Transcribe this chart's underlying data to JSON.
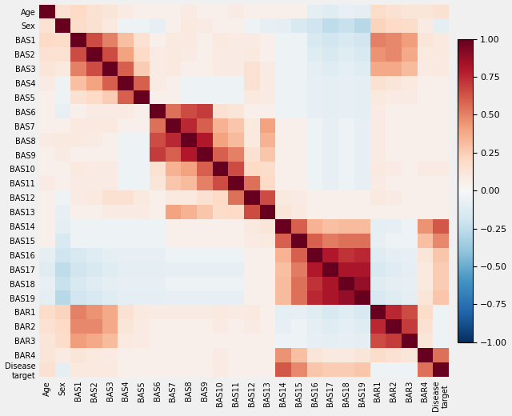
{
  "labels": [
    "Age",
    "Sex",
    "BAS1",
    "BAS2",
    "BAS3",
    "BAS4",
    "BAS5",
    "BAS6",
    "BAS7",
    "BAS8",
    "BAS9",
    "BAS10",
    "BAS11",
    "BAS12",
    "BAS13",
    "BAS14",
    "BAS15",
    "BAS16",
    "BAS17",
    "BAS18",
    "BAS19",
    "BAR1",
    "BAR2",
    "BAR3",
    "BAR4",
    "Disease\ntarget"
  ],
  "corr_matrix": [
    [
      1.0,
      0.15,
      0.2,
      0.15,
      0.12,
      0.08,
      0.05,
      0.05,
      0.05,
      0.08,
      0.05,
      0.05,
      0.08,
      0.05,
      0.05,
      0.05,
      0.05,
      -0.1,
      -0.12,
      -0.08,
      -0.1,
      0.18,
      0.15,
      0.12,
      0.12,
      0.15
    ],
    [
      0.15,
      1.0,
      0.18,
      0.15,
      0.1,
      -0.05,
      -0.05,
      -0.08,
      0.05,
      0.1,
      0.08,
      0.05,
      0.05,
      -0.05,
      -0.08,
      -0.1,
      -0.15,
      -0.2,
      -0.25,
      -0.22,
      -0.28,
      0.22,
      0.2,
      0.18,
      0.08,
      -0.1
    ],
    [
      0.2,
      0.18,
      1.0,
      0.65,
      0.5,
      0.3,
      0.15,
      0.05,
      0.1,
      0.1,
      0.05,
      0.1,
      0.08,
      0.08,
      0.05,
      -0.05,
      -0.05,
      -0.15,
      -0.18,
      -0.15,
      -0.18,
      0.5,
      0.48,
      0.42,
      0.12,
      0.1
    ],
    [
      0.15,
      0.15,
      0.65,
      1.0,
      0.65,
      0.4,
      0.2,
      0.08,
      0.1,
      0.08,
      0.05,
      0.08,
      0.08,
      0.1,
      0.05,
      -0.05,
      -0.05,
      -0.12,
      -0.15,
      -0.12,
      -0.15,
      0.45,
      0.48,
      0.38,
      0.1,
      0.1
    ],
    [
      0.12,
      0.1,
      0.5,
      0.65,
      1.0,
      0.6,
      0.25,
      0.08,
      0.1,
      0.05,
      0.05,
      0.08,
      0.08,
      0.15,
      0.08,
      -0.05,
      -0.05,
      -0.1,
      -0.12,
      -0.1,
      -0.12,
      0.38,
      0.38,
      0.32,
      0.08,
      0.1
    ],
    [
      0.08,
      -0.05,
      0.3,
      0.4,
      0.6,
      1.0,
      0.6,
      0.08,
      0.05,
      -0.05,
      -0.05,
      -0.05,
      -0.05,
      0.15,
      0.08,
      -0.05,
      -0.05,
      -0.08,
      -0.1,
      -0.08,
      -0.1,
      0.15,
      0.12,
      0.1,
      0.05,
      0.05
    ],
    [
      0.05,
      -0.05,
      0.15,
      0.2,
      0.25,
      0.6,
      1.0,
      0.05,
      0.05,
      -0.05,
      -0.05,
      -0.05,
      -0.05,
      0.1,
      0.08,
      -0.05,
      -0.05,
      -0.08,
      -0.1,
      -0.08,
      -0.1,
      0.1,
      0.08,
      0.08,
      0.05,
      0.05
    ],
    [
      0.05,
      -0.08,
      0.05,
      0.08,
      0.08,
      0.08,
      0.05,
      1.0,
      0.55,
      0.65,
      0.7,
      0.15,
      0.12,
      0.05,
      0.05,
      -0.05,
      -0.05,
      -0.08,
      -0.1,
      -0.08,
      -0.1,
      0.08,
      0.05,
      0.05,
      0.05,
      0.05
    ],
    [
      0.05,
      0.05,
      0.1,
      0.1,
      0.1,
      0.05,
      0.05,
      0.55,
      1.0,
      0.75,
      0.6,
      0.35,
      0.28,
      0.1,
      0.4,
      0.05,
      0.05,
      -0.05,
      -0.08,
      -0.05,
      -0.08,
      0.08,
      0.05,
      0.05,
      0.05,
      0.05
    ],
    [
      0.08,
      0.1,
      0.1,
      0.08,
      0.05,
      -0.05,
      -0.05,
      0.65,
      0.75,
      1.0,
      0.8,
      0.4,
      0.32,
      0.1,
      0.35,
      0.05,
      0.05,
      -0.05,
      -0.08,
      -0.05,
      -0.08,
      0.08,
      0.05,
      0.05,
      0.05,
      0.05
    ],
    [
      0.05,
      0.08,
      0.05,
      0.05,
      0.05,
      -0.05,
      -0.05,
      0.7,
      0.6,
      0.8,
      1.0,
      0.6,
      0.5,
      0.15,
      0.28,
      0.05,
      0.05,
      -0.05,
      -0.08,
      -0.05,
      -0.08,
      0.08,
      0.05,
      0.05,
      0.05,
      0.05
    ],
    [
      0.05,
      0.05,
      0.1,
      0.08,
      0.08,
      -0.05,
      -0.05,
      0.15,
      0.35,
      0.4,
      0.6,
      1.0,
      0.65,
      0.2,
      0.18,
      0.05,
      0.05,
      -0.05,
      -0.08,
      -0.05,
      -0.08,
      0.1,
      0.08,
      0.05,
      0.08,
      0.08
    ],
    [
      0.08,
      0.05,
      0.08,
      0.08,
      0.08,
      -0.05,
      -0.05,
      0.12,
      0.28,
      0.32,
      0.5,
      0.65,
      1.0,
      0.55,
      0.2,
      0.05,
      0.05,
      -0.05,
      -0.08,
      -0.05,
      -0.08,
      0.08,
      0.05,
      0.05,
      0.05,
      0.05
    ],
    [
      0.05,
      -0.05,
      0.08,
      0.1,
      0.15,
      0.15,
      0.1,
      0.05,
      0.1,
      0.1,
      0.15,
      0.2,
      0.55,
      1.0,
      0.65,
      0.1,
      0.08,
      0.05,
      0.05,
      0.05,
      0.05,
      0.1,
      0.08,
      0.05,
      0.05,
      0.05
    ],
    [
      0.05,
      -0.08,
      0.05,
      0.05,
      0.08,
      0.08,
      0.08,
      0.05,
      0.4,
      0.35,
      0.28,
      0.18,
      0.2,
      0.65,
      1.0,
      0.12,
      0.1,
      0.05,
      0.05,
      0.05,
      0.05,
      0.05,
      0.05,
      0.05,
      0.05,
      0.05
    ],
    [
      0.05,
      -0.1,
      -0.05,
      -0.05,
      -0.05,
      -0.05,
      -0.05,
      -0.05,
      0.05,
      0.05,
      0.05,
      0.05,
      0.05,
      0.1,
      0.12,
      1.0,
      0.6,
      0.35,
      0.3,
      0.32,
      0.32,
      -0.1,
      -0.08,
      -0.05,
      0.45,
      0.62
    ],
    [
      0.05,
      -0.15,
      -0.05,
      -0.05,
      -0.05,
      -0.05,
      -0.05,
      -0.05,
      0.05,
      0.05,
      0.05,
      0.05,
      0.05,
      0.08,
      0.1,
      0.6,
      1.0,
      0.6,
      0.52,
      0.55,
      0.55,
      -0.08,
      -0.05,
      -0.05,
      0.3,
      0.48
    ],
    [
      -0.1,
      -0.2,
      -0.15,
      -0.12,
      -0.1,
      -0.08,
      -0.08,
      -0.08,
      -0.05,
      -0.05,
      -0.05,
      -0.05,
      -0.05,
      0.05,
      0.05,
      0.35,
      0.6,
      1.0,
      0.8,
      0.72,
      0.75,
      -0.12,
      -0.1,
      -0.08,
      0.12,
      0.28
    ],
    [
      -0.12,
      -0.25,
      -0.18,
      -0.15,
      -0.12,
      -0.1,
      -0.1,
      -0.1,
      -0.08,
      -0.08,
      -0.08,
      -0.08,
      -0.08,
      0.05,
      0.05,
      0.3,
      0.52,
      0.8,
      1.0,
      0.82,
      0.82,
      -0.15,
      -0.12,
      -0.1,
      0.1,
      0.25
    ],
    [
      -0.08,
      -0.22,
      -0.15,
      -0.12,
      -0.1,
      -0.08,
      -0.08,
      -0.08,
      -0.05,
      -0.05,
      -0.05,
      -0.05,
      -0.05,
      0.05,
      0.05,
      0.32,
      0.55,
      0.72,
      0.82,
      1.0,
      0.88,
      -0.12,
      -0.1,
      -0.08,
      0.1,
      0.25
    ],
    [
      -0.1,
      -0.28,
      -0.18,
      -0.15,
      -0.12,
      -0.1,
      -0.1,
      -0.1,
      -0.08,
      -0.08,
      -0.08,
      -0.08,
      -0.08,
      0.05,
      0.05,
      0.32,
      0.55,
      0.75,
      0.82,
      0.88,
      1.0,
      -0.15,
      -0.12,
      -0.1,
      0.12,
      0.28
    ],
    [
      0.18,
      0.22,
      0.5,
      0.45,
      0.38,
      0.15,
      0.1,
      0.08,
      0.08,
      0.08,
      0.08,
      0.1,
      0.08,
      0.1,
      0.05,
      -0.1,
      -0.08,
      -0.12,
      -0.15,
      -0.12,
      -0.15,
      1.0,
      0.75,
      0.65,
      0.18,
      -0.05
    ],
    [
      0.15,
      0.2,
      0.48,
      0.48,
      0.38,
      0.12,
      0.08,
      0.05,
      0.05,
      0.05,
      0.05,
      0.08,
      0.05,
      0.08,
      0.05,
      -0.08,
      -0.05,
      -0.1,
      -0.12,
      -0.1,
      -0.12,
      0.75,
      1.0,
      0.7,
      0.15,
      -0.05
    ],
    [
      0.12,
      0.18,
      0.42,
      0.38,
      0.32,
      0.1,
      0.08,
      0.05,
      0.05,
      0.05,
      0.05,
      0.05,
      0.05,
      0.05,
      0.05,
      -0.05,
      -0.05,
      -0.08,
      -0.1,
      -0.08,
      -0.1,
      0.65,
      0.7,
      1.0,
      0.12,
      -0.05
    ],
    [
      0.12,
      0.08,
      0.12,
      0.1,
      0.08,
      0.05,
      0.05,
      0.05,
      0.05,
      0.05,
      0.05,
      0.08,
      0.05,
      0.05,
      0.05,
      0.45,
      0.3,
      0.12,
      0.1,
      0.1,
      0.12,
      0.18,
      0.15,
      0.12,
      1.0,
      0.55
    ],
    [
      0.15,
      -0.1,
      0.1,
      0.1,
      0.1,
      0.05,
      0.05,
      0.05,
      0.05,
      0.05,
      0.05,
      0.08,
      0.05,
      0.05,
      0.05,
      0.62,
      0.48,
      0.28,
      0.25,
      0.25,
      0.28,
      -0.05,
      -0.05,
      -0.05,
      0.55,
      1.0
    ]
  ],
  "figsize": [
    6.4,
    5.2
  ],
  "dpi": 100,
  "cmap": "RdBu_r",
  "vmin": -1.0,
  "vmax": 1.0,
  "colorbar_ticks": [
    1.0,
    0.75,
    0.5,
    0.25,
    0.0,
    -0.25,
    -0.5,
    -0.75,
    -1.0
  ],
  "tick_fontsize": 7.0,
  "colorbar_fontsize": 8.0,
  "bg_color": "#f0f0f0"
}
